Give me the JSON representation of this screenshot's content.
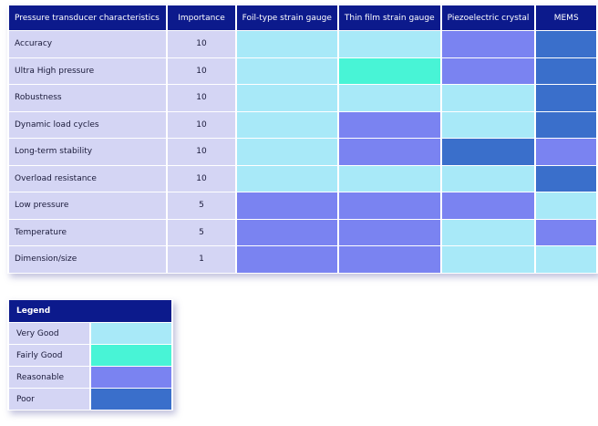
{
  "headers": [
    "Pressure transducer characteristics",
    "Importance",
    "Foil-type strain gauge",
    "Thin film strain gauge",
    "Piezoelectric crystal",
    "MEMS"
  ],
  "rows": [
    {
      "label": "Accuracy",
      "importance": "10",
      "ratings": [
        "verygood",
        "verygood",
        "reasonable",
        "poor"
      ]
    },
    {
      "label": "Ultra High pressure",
      "importance": "10",
      "ratings": [
        "verygood",
        "fairlygood",
        "reasonable",
        "poor"
      ]
    },
    {
      "label": "Robustness",
      "importance": "10",
      "ratings": [
        "verygood",
        "verygood",
        "verygood",
        "poor"
      ]
    },
    {
      "label": "Dynamic load cycles",
      "importance": "10",
      "ratings": [
        "verygood",
        "reasonable",
        "verygood",
        "poor"
      ]
    },
    {
      "label": "Long-term stability",
      "importance": "10",
      "ratings": [
        "verygood",
        "reasonable",
        "poor",
        "reasonable"
      ]
    },
    {
      "label": "Overload resistance",
      "importance": "10",
      "ratings": [
        "verygood",
        "verygood",
        "verygood",
        "poor"
      ]
    },
    {
      "label": "Low pressure",
      "importance": "5",
      "ratings": [
        "reasonable",
        "reasonable",
        "reasonable",
        "verygood"
      ]
    },
    {
      "label": "Temperature",
      "importance": "5",
      "ratings": [
        "reasonable",
        "reasonable",
        "verygood",
        "reasonable"
      ]
    },
    {
      "label": "Dimension/size",
      "importance": "1",
      "ratings": [
        "reasonable",
        "reasonable",
        "verygood",
        "verygood"
      ]
    }
  ],
  "legend": {
    "title": "Legend",
    "items": [
      {
        "key": "verygood",
        "label": "Very Good",
        "color": "#a8e9f8"
      },
      {
        "key": "fairlygood",
        "label": "Fairly Good",
        "color": "#48f4d6"
      },
      {
        "key": "reasonable",
        "label": "Reasonable",
        "color": "#7a83f1"
      },
      {
        "key": "poor",
        "label": "Poor",
        "color": "#3a6fcb"
      }
    ]
  }
}
